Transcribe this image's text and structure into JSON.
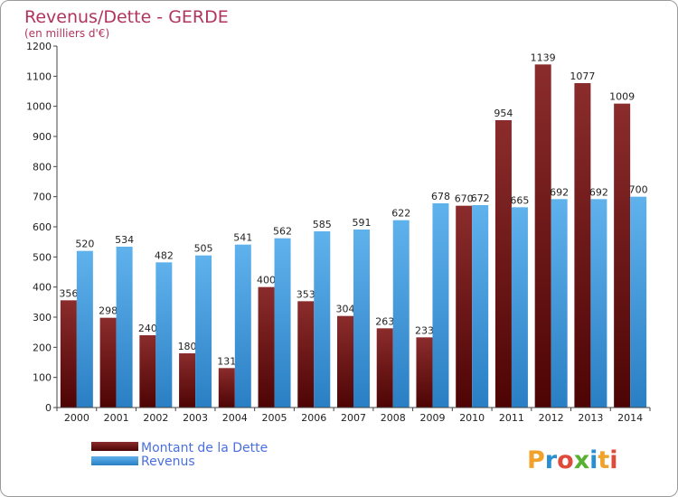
{
  "chart_data": {
    "type": "bar",
    "title": "Revenus/Dette - GERDE",
    "subtitle": "(en milliers d'€)",
    "categories": [
      "2000",
      "2001",
      "2002",
      "2003",
      "2004",
      "2005",
      "2006",
      "2007",
      "2008",
      "2009",
      "2010",
      "2011",
      "2012",
      "2013",
      "2014"
    ],
    "series": [
      {
        "name": "Montant de la Dette",
        "color": "#7a1717",
        "labels": [
          "356",
          "298",
          "240",
          "180",
          "131",
          "400",
          "353",
          "304",
          "263",
          "233",
          "670",
          "954",
          "1139",
          "1077",
          "1009"
        ],
        "values": [
          356,
          298,
          240,
          180,
          131,
          400,
          353,
          304,
          263,
          233,
          670,
          954,
          1139,
          1077,
          1009
        ]
      },
      {
        "name": "Revenus",
        "color": "#3d9be0",
        "labels": [
          "520",
          "534",
          "482",
          "505",
          "541",
          "562",
          "585",
          "591",
          "622",
          "678",
          "672",
          "665",
          "692",
          "692",
          "700"
        ],
        "values": [
          520,
          534,
          482,
          505,
          541,
          562,
          585,
          591,
          622,
          678,
          672,
          665,
          692,
          692,
          700
        ]
      }
    ],
    "y_ticks": [
      "0",
      "100",
      "200",
      "300",
      "400",
      "500",
      "600",
      "700",
      "800",
      "900",
      "1000",
      "1100",
      "1200"
    ],
    "ylim": [
      0,
      1200
    ],
    "grid": false,
    "legend_position": "bottom-left"
  },
  "logo": {
    "text": "Proxiti"
  }
}
